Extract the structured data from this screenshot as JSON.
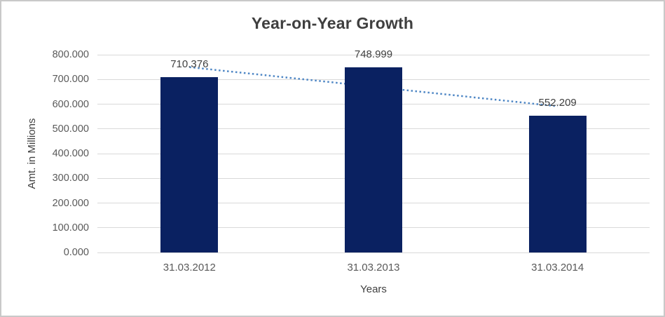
{
  "chart_data": {
    "type": "bar",
    "title": "Year-on-Year Growth",
    "xlabel": "Years",
    "ylabel": "Amt. in Millions",
    "categories": [
      "31.03.2012",
      "31.03.2013",
      "31.03.2014"
    ],
    "values": [
      710.376,
      748.999,
      552.209
    ],
    "data_labels": [
      "710.376",
      "748.999",
      "552.209"
    ],
    "y_ticks": [
      "0.000",
      "100.000",
      "200.000",
      "300.000",
      "400.000",
      "500.000",
      "600.000",
      "700.000",
      "800.000"
    ],
    "ylim": [
      0,
      800
    ],
    "grid": true,
    "legend": "none",
    "trendline": {
      "type": "linear",
      "style": "dotted"
    },
    "colors": {
      "bar": "#0a2161",
      "trendline": "#4f87c5",
      "gridline": "#d9d9d9",
      "title_text": "#3f3f3f",
      "axis_text": "#595959",
      "label_text": "#404040",
      "border": "#c9c9c9",
      "background": "#ffffff"
    }
  }
}
